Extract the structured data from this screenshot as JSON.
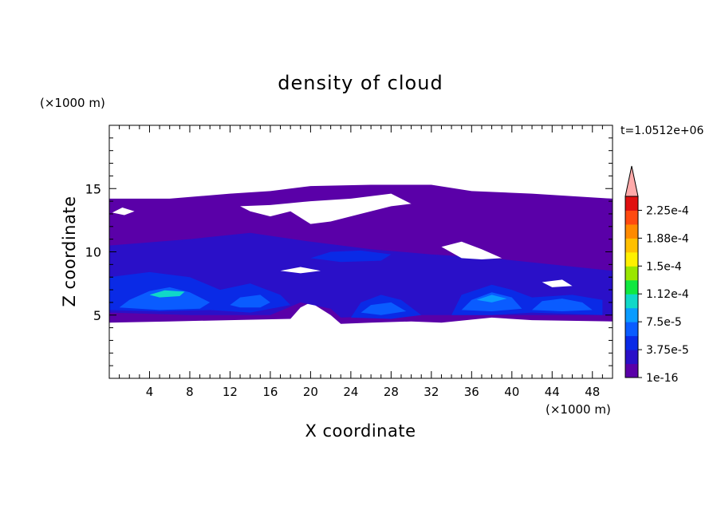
{
  "chart_data": {
    "type": "heatmap",
    "title": "density of cloud",
    "xlabel": "X coordinate",
    "ylabel": "Z coordinate",
    "x_unit": "(×1000 m)",
    "y_unit": "(×1000 m)",
    "time_label": "t=1.0512e+06",
    "xlim": [
      0,
      50
    ],
    "ylim": [
      0,
      20
    ],
    "x_ticks": [
      4,
      8,
      12,
      16,
      20,
      24,
      28,
      32,
      36,
      40,
      44,
      48
    ],
    "y_ticks": [
      5,
      10,
      15
    ],
    "colorbar": {
      "levels": [
        "1e-16",
        "3.75e-5",
        "7.5e-5",
        "1.12e-4",
        "1.5e-4",
        "1.88e-4",
        "2.25e-4"
      ],
      "colors": [
        "#5a00a8",
        "#2a10c8",
        "#0a2ae6",
        "#0a5cff",
        "#0a9cff",
        "#10d8c8",
        "#10e840",
        "#9ae600",
        "#fff000",
        "#ffc000",
        "#ff8a00",
        "#ff4a10",
        "#e01010",
        "#ffaaaa"
      ]
    },
    "regions": [
      {
        "level": 0,
        "desc": "cloud envelope",
        "shape": [
          [
            0,
            4.4
          ],
          [
            0,
            14.2
          ],
          [
            6,
            14.2
          ],
          [
            12,
            14.6
          ],
          [
            16,
            14.8
          ],
          [
            20,
            15.2
          ],
          [
            26,
            15.3
          ],
          [
            32,
            15.3
          ],
          [
            36,
            14.8
          ],
          [
            42,
            14.6
          ],
          [
            50,
            14.2
          ],
          [
            50,
            4.5
          ],
          [
            42,
            4.6
          ],
          [
            38,
            4.8
          ],
          [
            33,
            4.4
          ],
          [
            30,
            4.5
          ],
          [
            26,
            4.4
          ],
          [
            23,
            4.3
          ],
          [
            22,
            5.0
          ],
          [
            20,
            6.0
          ],
          [
            19,
            5.6
          ],
          [
            18,
            4.7
          ],
          [
            12,
            4.6
          ],
          [
            6,
            4.5
          ],
          [
            0,
            4.4
          ]
        ]
      },
      {
        "level": 1,
        "desc": "mid band",
        "shape": [
          [
            0,
            5.2
          ],
          [
            0,
            10.5
          ],
          [
            8,
            11.0
          ],
          [
            14,
            11.5
          ],
          [
            20,
            10.8
          ],
          [
            26,
            10.2
          ],
          [
            32,
            9.8
          ],
          [
            38,
            9.5
          ],
          [
            44,
            9.0
          ],
          [
            50,
            8.5
          ],
          [
            50,
            5.0
          ],
          [
            40,
            5.0
          ],
          [
            33,
            5.0
          ],
          [
            30,
            5.0
          ],
          [
            23,
            4.8
          ],
          [
            22,
            5.5
          ],
          [
            19,
            6.0
          ],
          [
            16,
            5.0
          ],
          [
            8,
            5.0
          ],
          [
            0,
            5.2
          ]
        ]
      },
      {
        "level": 2,
        "desc": "anvil 1",
        "shape": [
          [
            0,
            5.4
          ],
          [
            0,
            8.0
          ],
          [
            4,
            8.4
          ],
          [
            8,
            8.0
          ],
          [
            11,
            7.0
          ],
          [
            14,
            7.5
          ],
          [
            17,
            6.6
          ],
          [
            18,
            5.8
          ],
          [
            14,
            5.2
          ],
          [
            10,
            5.4
          ],
          [
            5,
            5.3
          ],
          [
            0,
            5.4
          ]
        ]
      },
      {
        "level": 3,
        "desc": "core 1",
        "shape": [
          [
            1,
            5.6
          ],
          [
            2,
            6.2
          ],
          [
            4,
            6.9
          ],
          [
            6,
            7.2
          ],
          [
            8,
            6.8
          ],
          [
            10,
            6.0
          ],
          [
            9,
            5.5
          ],
          [
            5,
            5.4
          ],
          [
            1,
            5.6
          ]
        ]
      },
      {
        "level": 5,
        "desc": "peak 1",
        "shape": [
          [
            4,
            6.6
          ],
          [
            5.5,
            6.95
          ],
          [
            7.5,
            6.85
          ],
          [
            7,
            6.5
          ],
          [
            5,
            6.4
          ],
          [
            4,
            6.6
          ]
        ]
      },
      {
        "level": 3,
        "desc": "core 2",
        "shape": [
          [
            12,
            5.8
          ],
          [
            13,
            6.4
          ],
          [
            15,
            6.6
          ],
          [
            16,
            6.0
          ],
          [
            15,
            5.6
          ],
          [
            13,
            5.6
          ],
          [
            12,
            5.8
          ]
        ]
      },
      {
        "level": 2,
        "desc": "anvil 3",
        "shape": [
          [
            24,
            4.8
          ],
          [
            25,
            6.0
          ],
          [
            27,
            6.6
          ],
          [
            29,
            6.2
          ],
          [
            31,
            5.0
          ],
          [
            28,
            4.7
          ],
          [
            24,
            4.8
          ]
        ]
      },
      {
        "level": 3,
        "desc": "core 3",
        "shape": [
          [
            25,
            5.2
          ],
          [
            26,
            5.8
          ],
          [
            28,
            6.0
          ],
          [
            29.5,
            5.3
          ],
          [
            27,
            5.0
          ],
          [
            25,
            5.2
          ]
        ]
      },
      {
        "level": 2,
        "desc": "anvil 4",
        "shape": [
          [
            34,
            5.0
          ],
          [
            35,
            6.6
          ],
          [
            38,
            7.4
          ],
          [
            40,
            7.0
          ],
          [
            42,
            6.4
          ],
          [
            46,
            6.6
          ],
          [
            49,
            6.2
          ],
          [
            49,
            5.0
          ],
          [
            42,
            5.2
          ],
          [
            38,
            5.0
          ],
          [
            34,
            5.0
          ]
        ]
      },
      {
        "level": 3,
        "desc": "core 4",
        "shape": [
          [
            35,
            5.4
          ],
          [
            36,
            6.2
          ],
          [
            38,
            6.8
          ],
          [
            40,
            6.4
          ],
          [
            41,
            5.5
          ],
          [
            38,
            5.3
          ],
          [
            35,
            5.4
          ]
        ]
      },
      {
        "level": 4,
        "desc": "peak 4",
        "shape": [
          [
            36.5,
            6.2
          ],
          [
            38,
            6.6
          ],
          [
            39.5,
            6.3
          ],
          [
            38,
            6.0
          ],
          [
            36.5,
            6.2
          ]
        ]
      },
      {
        "level": 3,
        "desc": "core 5",
        "shape": [
          [
            42,
            5.4
          ],
          [
            43,
            6.1
          ],
          [
            45,
            6.3
          ],
          [
            47,
            6.0
          ],
          [
            48,
            5.4
          ],
          [
            45,
            5.3
          ],
          [
            42,
            5.4
          ]
        ]
      },
      {
        "level": 2,
        "desc": "upper band",
        "shape": [
          [
            20,
            9.5
          ],
          [
            22,
            10.0
          ],
          [
            25,
            10.1
          ],
          [
            28,
            9.8
          ],
          [
            27,
            9.3
          ],
          [
            23,
            9.2
          ],
          [
            20,
            9.5
          ]
        ]
      }
    ],
    "holes": [
      {
        "desc": "upper clear gap",
        "shape": [
          [
            13,
            13.6
          ],
          [
            14,
            13.2
          ],
          [
            16,
            12.8
          ],
          [
            18,
            13.2
          ],
          [
            20,
            12.2
          ],
          [
            22,
            12.4
          ],
          [
            25,
            13.0
          ],
          [
            28,
            13.6
          ],
          [
            30,
            13.8
          ],
          [
            28,
            14.6
          ],
          [
            24,
            14.2
          ],
          [
            20,
            14.0
          ],
          [
            16,
            13.7
          ],
          [
            13,
            13.6
          ]
        ]
      },
      {
        "level": 0,
        "desc": "small gap top-left",
        "shape": [
          [
            0.3,
            13.1
          ],
          [
            1.5,
            12.9
          ],
          [
            2.5,
            13.2
          ],
          [
            1.3,
            13.5
          ],
          [
            0.3,
            13.1
          ]
        ]
      },
      {
        "desc": "gap right mid",
        "shape": [
          [
            33,
            10.4
          ],
          [
            35,
            10.8
          ],
          [
            37,
            10.2
          ],
          [
            39,
            9.5
          ],
          [
            37,
            9.4
          ],
          [
            35,
            9.5
          ],
          [
            33,
            10.4
          ]
        ]
      },
      {
        "desc": "gap near 44,7.5",
        "shape": [
          [
            43,
            7.6
          ],
          [
            45,
            7.8
          ],
          [
            46,
            7.3
          ],
          [
            44,
            7.2
          ],
          [
            43,
            7.6
          ]
        ]
      },
      {
        "desc": "gap 21,10",
        "shape": [
          [
            17,
            8.5
          ],
          [
            19,
            8.3
          ],
          [
            21,
            8.5
          ],
          [
            19,
            8.8
          ],
          [
            17,
            8.5
          ]
        ]
      }
    ]
  }
}
